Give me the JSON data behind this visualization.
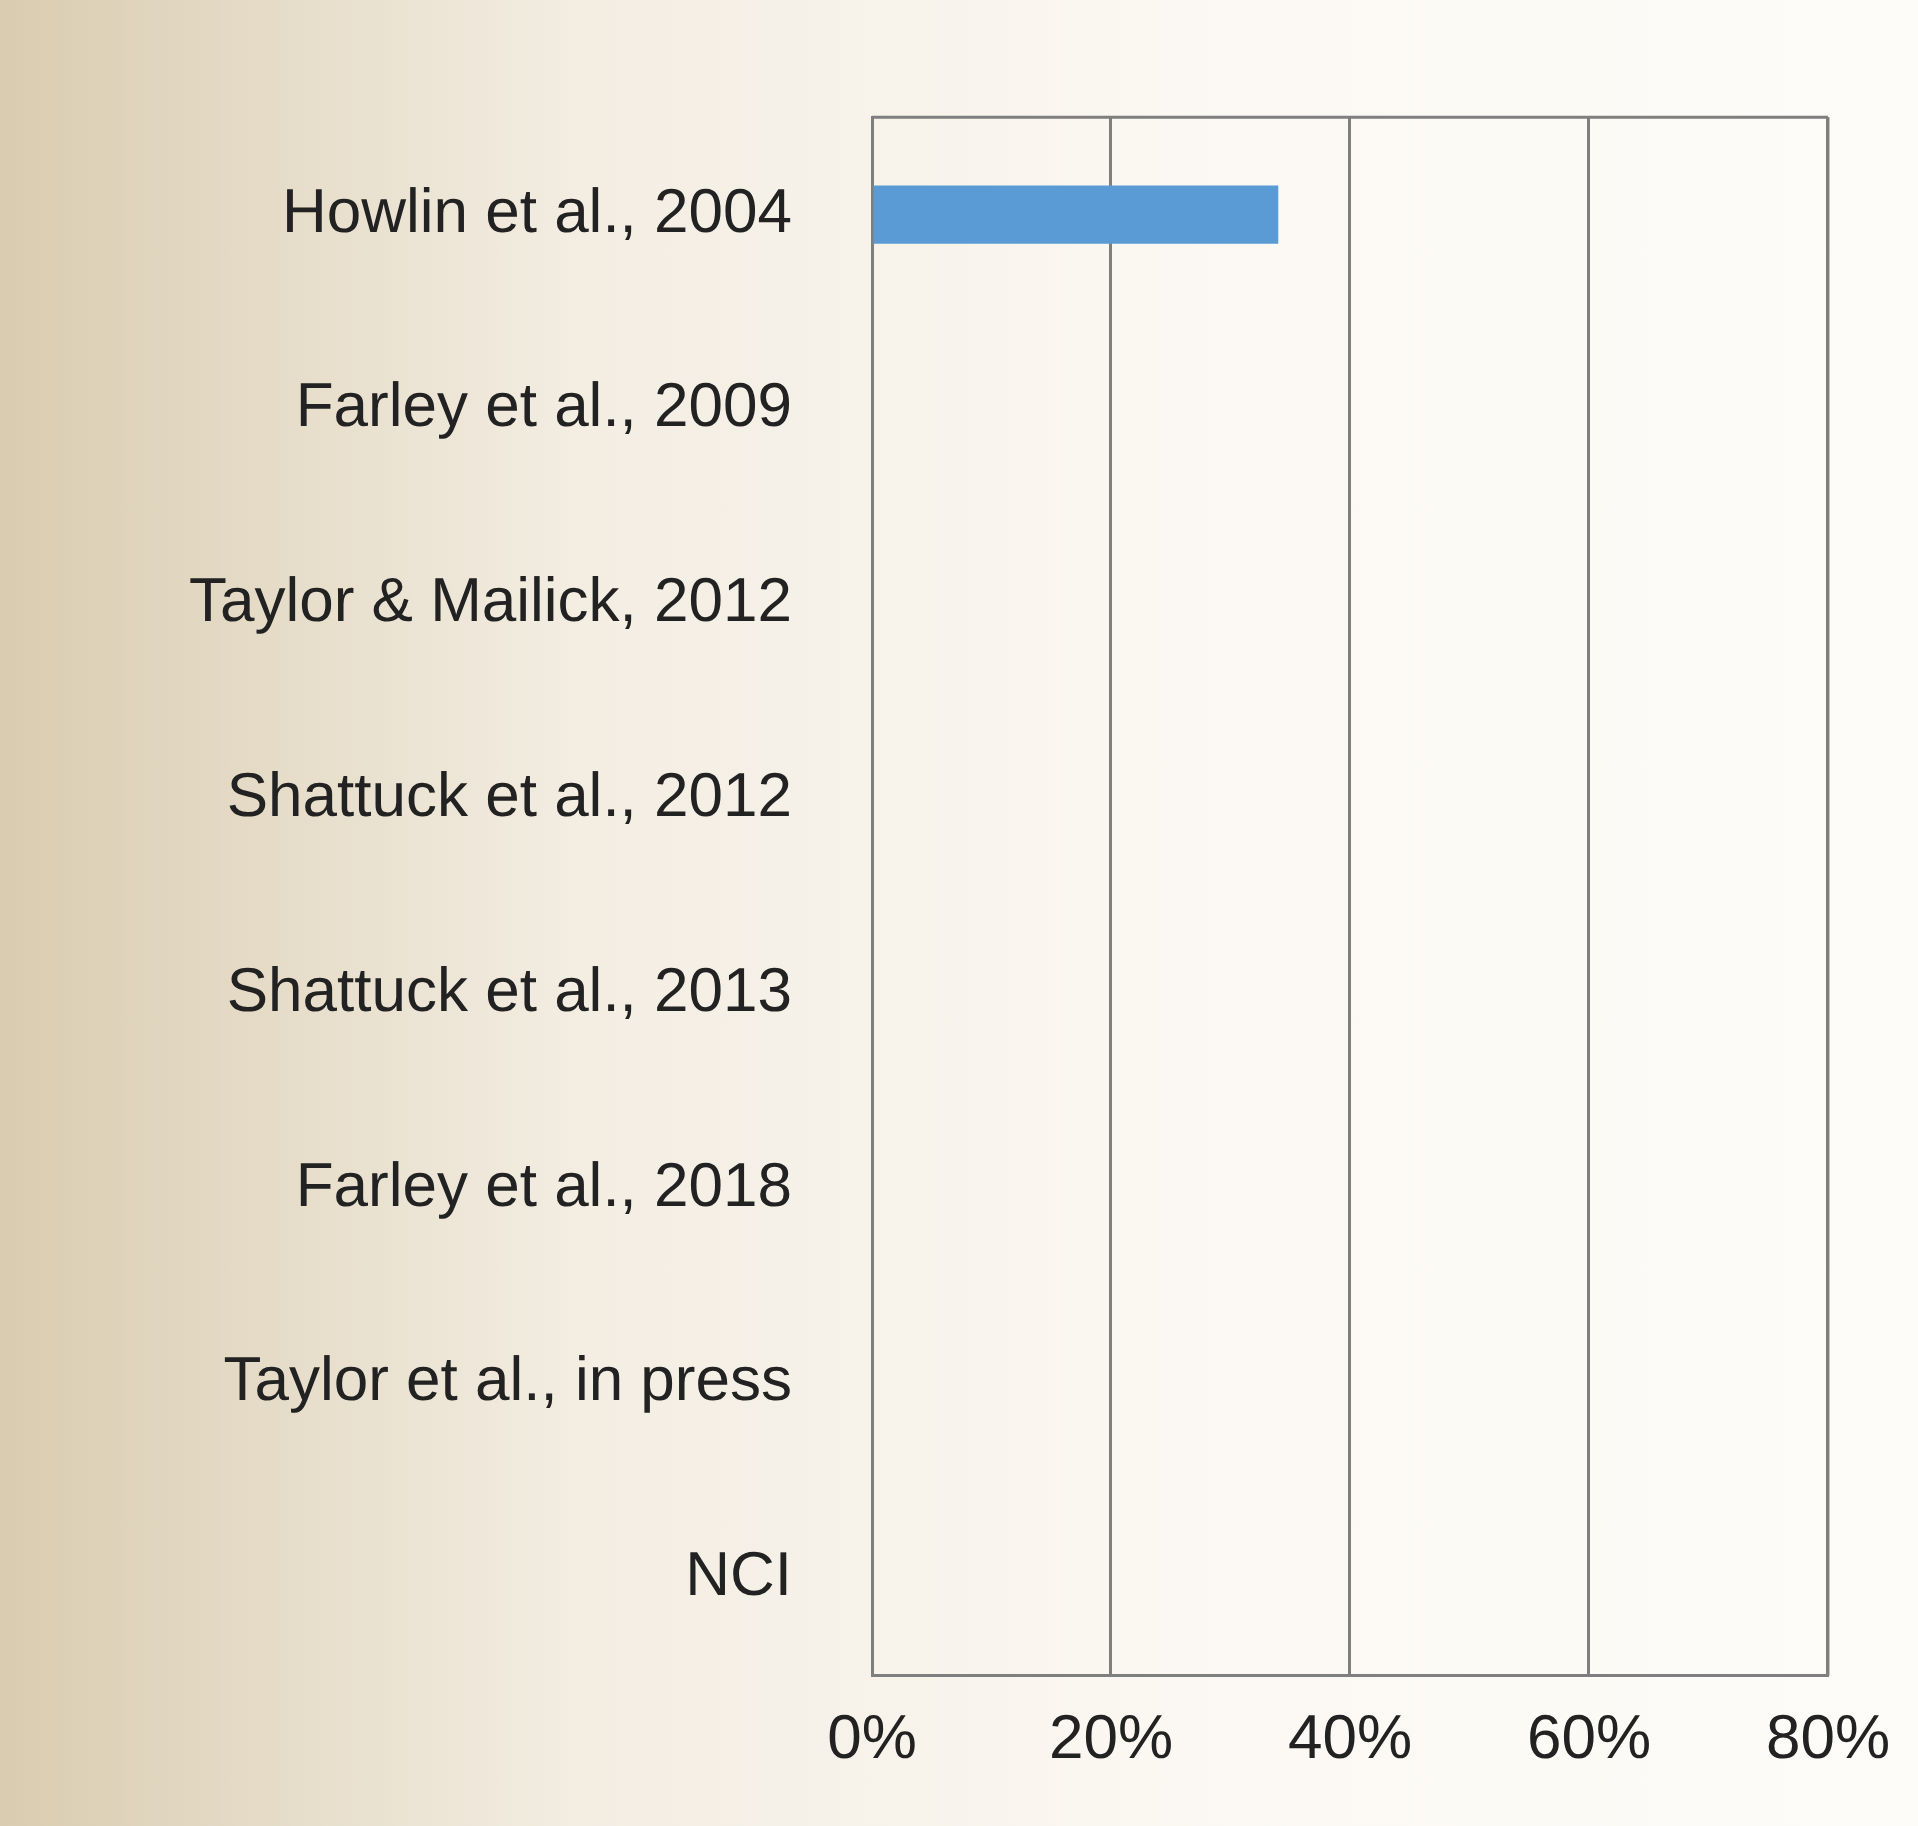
{
  "chart_data": {
    "type": "bar",
    "orientation": "horizontal",
    "categories": [
      "Howlin et al., 2004",
      "Farley et al., 2009",
      "Taylor & Mailick, 2012",
      "Shattuck et al., 2012",
      "Shattuck et al., 2013",
      "Farley et al., 2018",
      "Taylor et al., in press",
      "NCI"
    ],
    "values": [
      34,
      null,
      null,
      null,
      null,
      null,
      null,
      null
    ],
    "color": "#5b9bd5",
    "xlim": [
      0,
      80
    ],
    "xticks": [
      {
        "value": 0,
        "label": "0%"
      },
      {
        "value": 20,
        "label": "20%"
      },
      {
        "value": 40,
        "label": "40%"
      },
      {
        "value": 60,
        "label": "60%"
      },
      {
        "value": 80,
        "label": "80%"
      }
    ],
    "grid": "x",
    "legend": false
  }
}
